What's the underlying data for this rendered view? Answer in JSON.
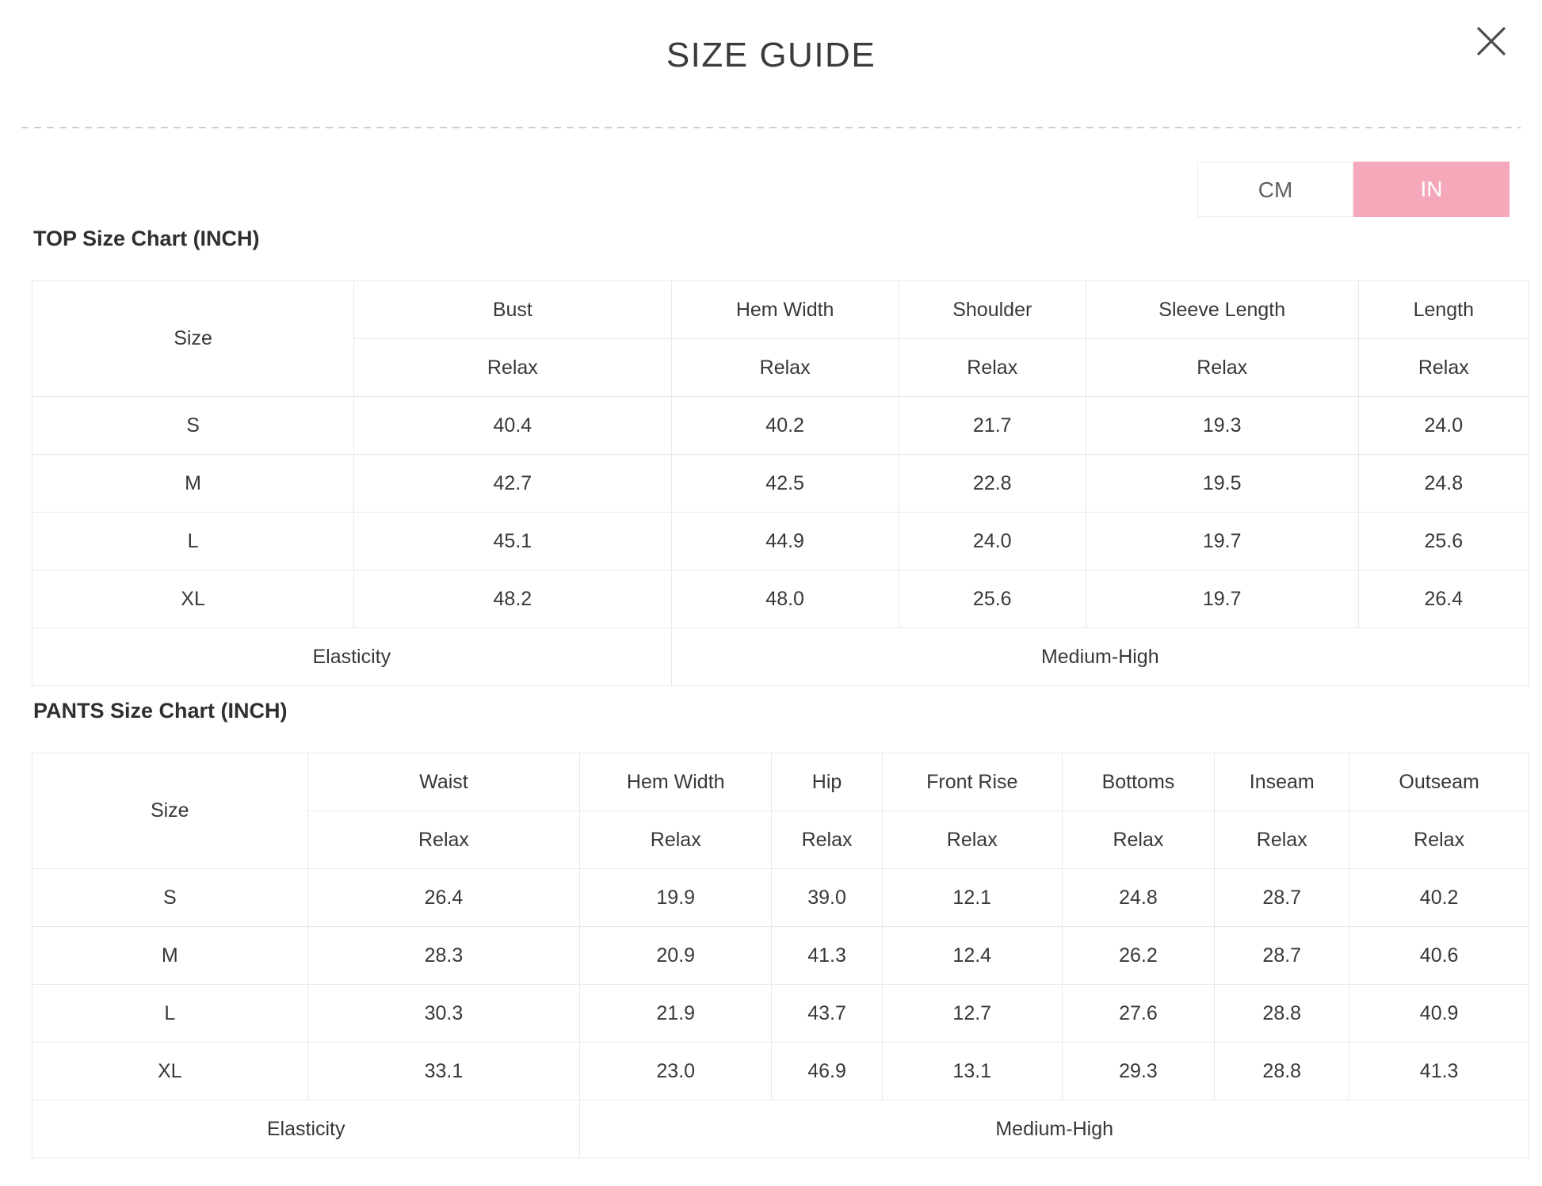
{
  "header": {
    "title": "SIZE GUIDE"
  },
  "unit_toggle": {
    "options": [
      {
        "label": "CM",
        "active": false
      },
      {
        "label": "IN",
        "active": true
      }
    ],
    "active_color": "#f4a8ba"
  },
  "top_chart": {
    "heading": "TOP Size Chart (INCH)",
    "size_label": "Size",
    "relax_label": "Relax",
    "columns": [
      "Bust",
      "Hem Width",
      "Shoulder",
      "Sleeve Length",
      "Length"
    ],
    "rows": [
      {
        "size": "S",
        "values": [
          "40.4",
          "40.2",
          "21.7",
          "19.3",
          "24.0"
        ]
      },
      {
        "size": "M",
        "values": [
          "42.7",
          "42.5",
          "22.8",
          "19.5",
          "24.8"
        ]
      },
      {
        "size": "L",
        "values": [
          "45.1",
          "44.9",
          "24.0",
          "19.7",
          "25.6"
        ]
      },
      {
        "size": "XL",
        "values": [
          "48.2",
          "48.0",
          "25.6",
          "19.7",
          "26.4"
        ]
      }
    ],
    "elasticity_label": "Elasticity",
    "elasticity_value": "Medium-High"
  },
  "pants_chart": {
    "heading": "PANTS Size Chart (INCH)",
    "size_label": "Size",
    "relax_label": "Relax",
    "columns": [
      "Waist",
      "Hem Width",
      "Hip",
      "Front Rise",
      "Bottoms",
      "Inseam",
      "Outseam"
    ],
    "rows": [
      {
        "size": "S",
        "values": [
          "26.4",
          "19.9",
          "39.0",
          "12.1",
          "24.8",
          "28.7",
          "40.2"
        ]
      },
      {
        "size": "M",
        "values": [
          "28.3",
          "20.9",
          "41.3",
          "12.4",
          "26.2",
          "28.7",
          "40.6"
        ]
      },
      {
        "size": "L",
        "values": [
          "30.3",
          "21.9",
          "43.7",
          "12.7",
          "27.6",
          "28.8",
          "40.9"
        ]
      },
      {
        "size": "XL",
        "values": [
          "33.1",
          "23.0",
          "46.9",
          "13.1",
          "29.3",
          "28.8",
          "41.3"
        ]
      }
    ],
    "elasticity_label": "Elasticity",
    "elasticity_value": "Medium-High"
  }
}
